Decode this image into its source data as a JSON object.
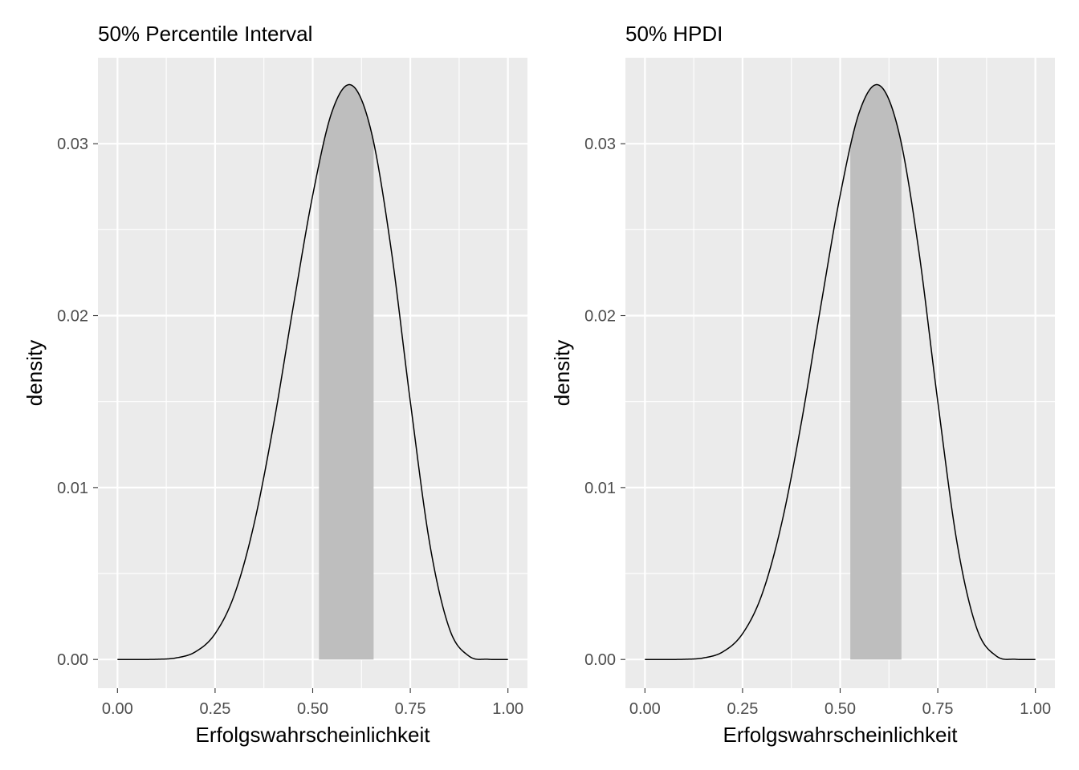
{
  "chart_data": [
    {
      "type": "area",
      "title": "50% Percentile Interval",
      "xlabel": "Erfolgswahrscheinlichkeit",
      "ylabel": "density",
      "xlim": [
        -0.05,
        1.05
      ],
      "ylim": [
        -0.00167,
        0.035
      ],
      "x_ticks": [
        0.0,
        0.25,
        0.5,
        0.75,
        1.0
      ],
      "x_tick_labels": [
        "0.00",
        "0.25",
        "0.50",
        "0.75",
        "1.00"
      ],
      "y_ticks": [
        0.0,
        0.01,
        0.02,
        0.03
      ],
      "y_tick_labels": [
        "0.00",
        "0.01",
        "0.02",
        "0.03"
      ],
      "shaded_interval": [
        0.516,
        0.656
      ],
      "grid": true,
      "series": [
        {
          "x": [
            0.0,
            0.05,
            0.1,
            0.15,
            0.2,
            0.25,
            0.3,
            0.35,
            0.4,
            0.45,
            0.5,
            0.55,
            0.6,
            0.65,
            0.7,
            0.75,
            0.8,
            0.85,
            0.9,
            0.95,
            1.0
          ],
          "values": [
            0.0,
            0.0,
            1e-05,
            9e-05,
            0.00045,
            0.0015,
            0.0038,
            0.0079,
            0.0137,
            0.0205,
            0.027,
            0.0319,
            0.0334,
            0.0307,
            0.024,
            0.015,
            0.0067,
            0.0018,
            0.0002,
            1e-05,
            0.0
          ]
        }
      ],
      "colors": {
        "panel": "#ebebeb",
        "grid": "#ffffff",
        "shade": "#bebebe",
        "line": "#000000"
      }
    },
    {
      "type": "area",
      "title": "50% HPDI",
      "xlabel": "Erfolgswahrscheinlichkeit",
      "ylabel": "density",
      "xlim": [
        -0.05,
        1.05
      ],
      "ylim": [
        -0.00167,
        0.035
      ],
      "x_ticks": [
        0.0,
        0.25,
        0.5,
        0.75,
        1.0
      ],
      "x_tick_labels": [
        "0.00",
        "0.25",
        "0.50",
        "0.75",
        "1.00"
      ],
      "y_ticks": [
        0.0,
        0.01,
        0.02,
        0.03
      ],
      "y_tick_labels": [
        "0.00",
        "0.01",
        "0.02",
        "0.03"
      ],
      "shaded_interval": [
        0.526,
        0.657
      ],
      "grid": true,
      "series": [
        {
          "x": [
            0.0,
            0.05,
            0.1,
            0.15,
            0.2,
            0.25,
            0.3,
            0.35,
            0.4,
            0.45,
            0.5,
            0.55,
            0.6,
            0.65,
            0.7,
            0.75,
            0.8,
            0.85,
            0.9,
            0.95,
            1.0
          ],
          "values": [
            0.0,
            0.0,
            1e-05,
            9e-05,
            0.00045,
            0.0015,
            0.0038,
            0.0079,
            0.0137,
            0.0205,
            0.027,
            0.0319,
            0.0334,
            0.0307,
            0.024,
            0.015,
            0.0067,
            0.0018,
            0.0002,
            1e-05,
            0.0
          ]
        }
      ],
      "colors": {
        "panel": "#ebebeb",
        "grid": "#ffffff",
        "shade": "#bebebe",
        "line": "#000000"
      }
    }
  ]
}
